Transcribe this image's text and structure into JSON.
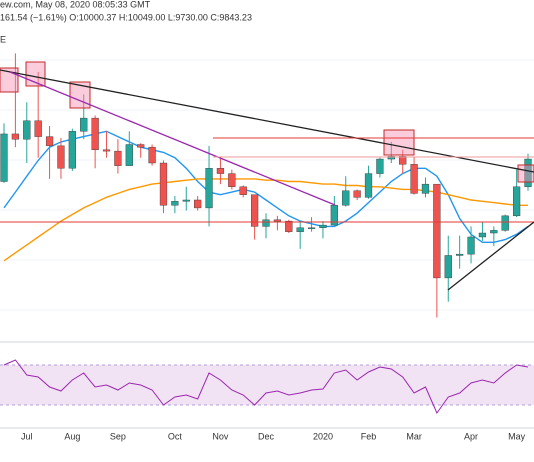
{
  "chart_data": {
    "type": "candlestick",
    "header": "ew.com, May 08, 2020 08:05:33 GMT",
    "quote": "161.54 (−1.61%) O:10000.37 H:10049.00 L:9730.00 C:9843.23",
    "pane_label": "E",
    "categories": [
      null,
      null,
      "Jul",
      null,
      null,
      null,
      "Aug",
      null,
      null,
      null,
      "Sep",
      null,
      null,
      null,
      null,
      "Oct",
      null,
      null,
      null,
      "Nov",
      null,
      null,
      null,
      "Dec",
      null,
      null,
      null,
      null,
      "2020",
      null,
      null,
      null,
      "Feb",
      null,
      null,
      null,
      "Mar",
      null,
      null,
      null,
      null,
      "Apr",
      null,
      null,
      null,
      "May",
      null
    ],
    "open": [
      9000,
      10800,
      10600,
      11300,
      10700,
      10350,
      9500,
      10900,
      11400,
      10200,
      10150,
      9600,
      10400,
      10300,
      9700,
      8100,
      8250,
      8300,
      8000,
      9500,
      9300,
      8800,
      8500,
      7300,
      7550,
      7500,
      7100,
      7250,
      7250,
      7350,
      8100,
      8650,
      8400,
      9300,
      9850,
      9950,
      9650,
      8550,
      8900,
      5350,
      6200,
      6250,
      6900,
      7050,
      7150,
      7700,
      8800
    ],
    "high": [
      11200,
      13850,
      12000,
      13150,
      11100,
      10650,
      11000,
      12300,
      11500,
      10900,
      10600,
      10900,
      10450,
      10400,
      9800,
      8450,
      8800,
      8450,
      10350,
      9950,
      9450,
      8850,
      8500,
      7800,
      7700,
      7550,
      7500,
      7650,
      7500,
      8450,
      9200,
      8700,
      9600,
      9900,
      10500,
      10200,
      9950,
      9150,
      8900,
      6950,
      6950,
      7300,
      7450,
      7300,
      7750,
      9450,
      10050
    ],
    "low": [
      8950,
      10300,
      9700,
      9900,
      9100,
      9100,
      9400,
      10600,
      9500,
      9900,
      9300,
      9600,
      9900,
      9600,
      7800,
      7800,
      7900,
      7900,
      7300,
      8900,
      8700,
      8400,
      6800,
      6850,
      7150,
      7050,
      6450,
      7100,
      6850,
      7350,
      8050,
      8300,
      8350,
      9150,
      9700,
      9300,
      8500,
      8400,
      3850,
      4450,
      5700,
      5900,
      6750,
      6550,
      7100,
      7650,
      8650
    ],
    "close": [
      10800,
      10600,
      11300,
      10700,
      10350,
      9500,
      10900,
      11400,
      10200,
      10150,
      9600,
      10400,
      10300,
      9700,
      8100,
      8250,
      8300,
      8000,
      9500,
      9300,
      8800,
      8500,
      7300,
      7550,
      7500,
      7100,
      7250,
      7250,
      7350,
      8100,
      8650,
      8400,
      9300,
      9850,
      9950,
      9650,
      8550,
      8900,
      5350,
      6200,
      6250,
      6900,
      7050,
      7150,
      7700,
      8800,
      9850
    ],
    "up_color": "#26a69a",
    "down_color": "#ef5350",
    "ylim": [
      3000,
      15000
    ],
    "overlays": [
      {
        "color": "#2196f3",
        "values": [
          8000,
          8600,
          9200,
          9800,
          10300,
          10500,
          10600,
          10700,
          10800,
          10900,
          10700,
          10500,
          10300,
          10200,
          10100,
          9900,
          9500,
          9000,
          8600,
          8500,
          8600,
          8700,
          8600,
          8300,
          8000,
          7700,
          7500,
          7400,
          7300,
          7300,
          7500,
          7800,
          8200,
          8600,
          9000,
          9300,
          9500,
          9500,
          9200,
          8500,
          7600,
          7000,
          6700,
          6700,
          6800,
          7000,
          7300
        ]
      },
      {
        "color": "#ff9800",
        "values": [
          6000,
          6300,
          6600,
          6900,
          7200,
          7500,
          7750,
          8000,
          8200,
          8400,
          8550,
          8700,
          8800,
          8900,
          8950,
          9000,
          9050,
          9100,
          9100,
          9100,
          9100,
          9100,
          9100,
          9050,
          9050,
          9000,
          9000,
          8950,
          8900,
          8900,
          8850,
          8850,
          8800,
          8800,
          8750,
          8700,
          8700,
          8650,
          8600,
          8500,
          8400,
          8300,
          8250,
          8200,
          8150,
          8100,
          8100
        ]
      }
    ],
    "rsi": {
      "color": "#9c27b0",
      "band_color": "#e1bee7",
      "ylim": [
        10,
        92
      ],
      "bands": [
        30,
        70
      ],
      "values": [
        70,
        75,
        60,
        58,
        48,
        44,
        55,
        62,
        48,
        50,
        45,
        52,
        50,
        45,
        30,
        38,
        40,
        36,
        62,
        55,
        45,
        40,
        30,
        42,
        44,
        40,
        42,
        45,
        46,
        62,
        65,
        55,
        63,
        68,
        66,
        58,
        42,
        48,
        22,
        38,
        42,
        52,
        55,
        52,
        62,
        70,
        68
      ]
    }
  }
}
